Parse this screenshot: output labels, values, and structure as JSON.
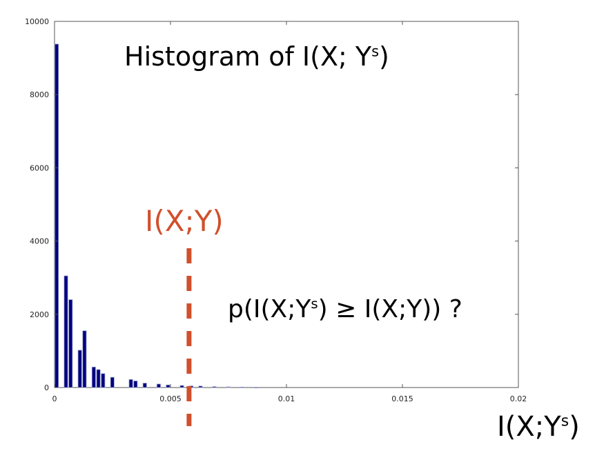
{
  "chart_data": {
    "type": "bar",
    "title_main": "Histogram of I(X; Y",
    "title_sup": "s",
    "title_end": ")",
    "xlabel_main": "I(X;Y",
    "xlabel_sup": "s",
    "xlabel_end": ")",
    "marker": {
      "label": "I(X;Y)",
      "x": 0.0058,
      "color": "#d0502c"
    },
    "annotation_main": "p(I(X;Y",
    "annotation_sup": "s",
    "annotation_end": ") ≥ I(X;Y)) ?",
    "xlim": [
      0,
      0.02
    ],
    "ylim": [
      0,
      10000
    ],
    "xticks": [
      {
        "value": 0,
        "label": "0"
      },
      {
        "value": 0.005,
        "label": "0.005"
      },
      {
        "value": 0.01,
        "label": "0.01"
      },
      {
        "value": 0.015,
        "label": "0.015"
      },
      {
        "value": 0.02,
        "label": "0.02"
      }
    ],
    "yticks": [
      {
        "value": 0,
        "label": "0"
      },
      {
        "value": 2000,
        "label": "2000"
      },
      {
        "value": 4000,
        "label": "4000"
      },
      {
        "value": 6000,
        "label": "6000"
      },
      {
        "value": 8000,
        "label": "8000"
      },
      {
        "value": 10000,
        "label": "10000"
      }
    ],
    "bin_width": 0.0002,
    "bars": [
      {
        "x": 0.0,
        "y": 9380
      },
      {
        "x": 0.0004,
        "y": 3050
      },
      {
        "x": 0.0006,
        "y": 2400
      },
      {
        "x": 0.001,
        "y": 1020
      },
      {
        "x": 0.0012,
        "y": 1550
      },
      {
        "x": 0.0016,
        "y": 560
      },
      {
        "x": 0.0018,
        "y": 490
      },
      {
        "x": 0.002,
        "y": 380
      },
      {
        "x": 0.0024,
        "y": 280
      },
      {
        "x": 0.0032,
        "y": 220
      },
      {
        "x": 0.0034,
        "y": 180
      },
      {
        "x": 0.0038,
        "y": 120
      },
      {
        "x": 0.0044,
        "y": 95
      },
      {
        "x": 0.0048,
        "y": 70
      },
      {
        "x": 0.0054,
        "y": 55
      },
      {
        "x": 0.0058,
        "y": 45
      },
      {
        "x": 0.0062,
        "y": 40
      },
      {
        "x": 0.0068,
        "y": 25
      },
      {
        "x": 0.0074,
        "y": 18
      },
      {
        "x": 0.008,
        "y": 12
      },
      {
        "x": 0.0086,
        "y": 8
      }
    ],
    "bar_color": "#000080",
    "grid": false
  }
}
